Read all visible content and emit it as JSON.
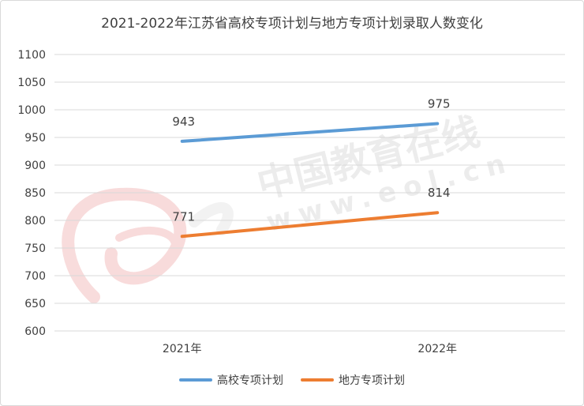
{
  "chart_data": {
    "type": "line",
    "title": "2021-2022年江苏省高校专项计划与地方专项计划录取人数变化",
    "xlabel": "",
    "ylabel": "",
    "categories": [
      "2021年",
      "2022年"
    ],
    "series": [
      {
        "name": "高校专项计划",
        "values": [
          943,
          975
        ],
        "color": "#5b9bd5"
      },
      {
        "name": "地方专项计划",
        "values": [
          771,
          814
        ],
        "color": "#ed7d31"
      }
    ],
    "ylim": [
      600,
      1100
    ],
    "yticks": [
      600,
      650,
      700,
      750,
      800,
      850,
      900,
      950,
      1000,
      1050,
      1100
    ],
    "grid": true,
    "legend_position": "bottom",
    "watermark": {
      "text_cn": "中国教育在线",
      "text_en": "www.eol.cn",
      "logo": "eol"
    }
  }
}
